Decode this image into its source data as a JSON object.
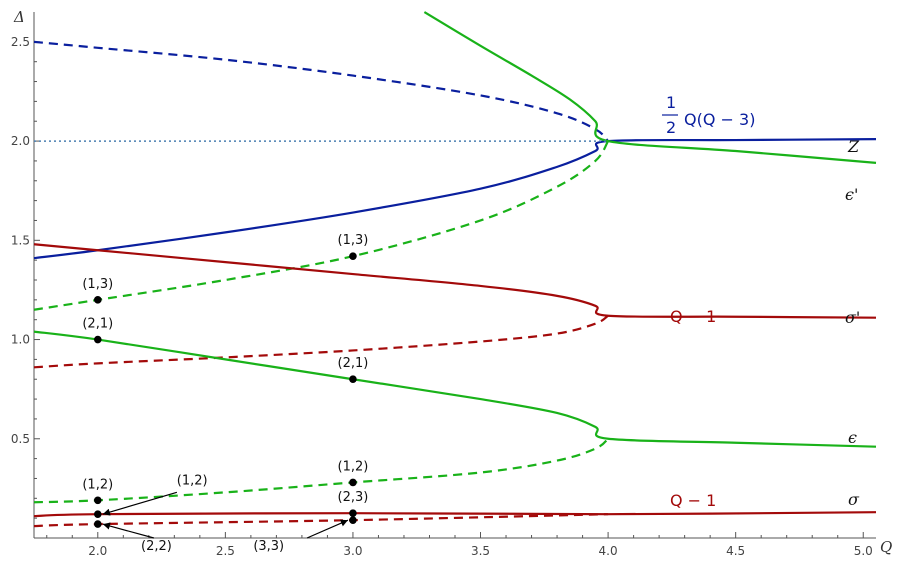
{
  "chart_data": {
    "type": "line",
    "xlabel": "Q",
    "ylabel": "Δ",
    "xlim": [
      1.75,
      5.05
    ],
    "ylim": [
      0.0,
      2.6
    ],
    "grid": false,
    "x_ticks": [
      "2.0",
      "2.5",
      "3.0",
      "3.5",
      "4.0",
      "4.5",
      "5.0"
    ],
    "y_ticks": [
      "0.5",
      "1.0",
      "1.5",
      "2.0",
      "2.5"
    ],
    "colors": {
      "blue": "#0a1f9e",
      "green": "#19b219",
      "red": "#a30a0a",
      "dotted": "#4a7fb0"
    },
    "series": [
      {
        "name": "Z",
        "color": "blue",
        "style": "solid",
        "x": [
          1.75,
          2.0,
          2.5,
          3.0,
          3.5,
          3.8,
          3.95,
          4.0,
          4.5,
          5.05
        ],
        "y": [
          1.41,
          1.45,
          1.54,
          1.64,
          1.76,
          1.87,
          1.95,
          2.0,
          2.005,
          2.01
        ]
      },
      {
        "name": "",
        "color": "blue",
        "style": "dashed",
        "x": [
          1.75,
          2.0,
          2.5,
          3.0,
          3.5,
          3.8,
          3.95,
          4.0
        ],
        "y": [
          2.5,
          2.47,
          2.41,
          2.33,
          2.23,
          2.14,
          2.06,
          2.0
        ]
      },
      {
        "name": "ε'",
        "color": "green",
        "style": "solid",
        "x": [
          3.28,
          3.5,
          3.7,
          3.85,
          3.95,
          4.0,
          4.5,
          5.05
        ],
        "y": [
          2.65,
          2.48,
          2.33,
          2.21,
          2.1,
          2.0,
          1.95,
          1.89
        ]
      },
      {
        "name": "",
        "color": "green",
        "style": "dashed",
        "x": [
          1.75,
          2.0,
          2.5,
          3.0,
          3.5,
          3.8,
          3.95,
          4.0
        ],
        "y": [
          1.15,
          1.2,
          1.3,
          1.42,
          1.6,
          1.77,
          1.9,
          2.0
        ]
      },
      {
        "name": "σ'",
        "color": "red",
        "style": "solid",
        "x": [
          1.75,
          2.0,
          2.5,
          3.0,
          3.5,
          3.8,
          3.95,
          4.0,
          4.5,
          5.05
        ],
        "y": [
          1.48,
          1.45,
          1.39,
          1.33,
          1.27,
          1.22,
          1.17,
          1.12,
          1.115,
          1.11
        ]
      },
      {
        "name": "",
        "color": "red",
        "style": "dashed",
        "x": [
          1.75,
          2.0,
          2.5,
          3.0,
          3.5,
          3.8,
          3.95,
          4.0
        ],
        "y": [
          0.86,
          0.88,
          0.91,
          0.945,
          0.99,
          1.03,
          1.08,
          1.12
        ]
      },
      {
        "name": "ε",
        "color": "green",
        "style": "solid",
        "x": [
          1.75,
          2.0,
          2.5,
          3.0,
          3.5,
          3.8,
          3.95,
          4.0,
          4.5,
          5.05
        ],
        "y": [
          1.04,
          1.0,
          0.9,
          0.8,
          0.7,
          0.63,
          0.56,
          0.5,
          0.48,
          0.46
        ]
      },
      {
        "name": "",
        "color": "green",
        "style": "dashed",
        "x": [
          1.75,
          2.0,
          2.5,
          3.0,
          3.5,
          3.8,
          3.95,
          4.0
        ],
        "y": [
          0.18,
          0.19,
          0.23,
          0.28,
          0.33,
          0.39,
          0.45,
          0.5
        ]
      },
      {
        "name": "σ",
        "color": "red",
        "style": "solid",
        "x": [
          1.75,
          2.0,
          3.0,
          4.0,
          5.05
        ],
        "y": [
          0.11,
          0.12,
          0.125,
          0.12,
          0.13
        ]
      },
      {
        "name": "",
        "color": "red",
        "style": "dashed",
        "x": [
          1.75,
          2.0,
          3.0,
          4.0
        ],
        "y": [
          0.06,
          0.07,
          0.09,
          0.12
        ]
      },
      {
        "name": "",
        "color": "dotted",
        "style": "dotted",
        "x": [
          1.75,
          4.0
        ],
        "y": [
          2.0,
          2.0
        ]
      }
    ],
    "points": [
      {
        "label": "(1,3)",
        "x": 2.0,
        "y": 1.2
      },
      {
        "label": "(1,3)",
        "x": 3.0,
        "y": 1.42
      },
      {
        "label": "(2,1)",
        "x": 2.0,
        "y": 1.0
      },
      {
        "label": "(2,1)",
        "x": 3.0,
        "y": 0.8
      },
      {
        "label": "(1,2)",
        "x": 2.0,
        "y": 0.19
      },
      {
        "label": "(1,2)",
        "x": 3.0,
        "y": 0.28
      },
      {
        "label": "(2,3)",
        "x": 3.0,
        "y": 0.125
      },
      {
        "label": "(1,2)",
        "x": 2.0,
        "y": 0.12
      },
      {
        "label": "(2,2)",
        "x": 2.0,
        "y": 0.07
      },
      {
        "label": "(3,3)",
        "x": 3.0,
        "y": 0.09
      }
    ],
    "annotations": {
      "blue_formula_frac_num": "1",
      "blue_formula_frac_den": "2",
      "blue_formula_text": "Q(Q − 3)",
      "q_minus_1_upper": "Q − 1",
      "q_minus_1_lower": "Q − 1",
      "label_Z": "Z",
      "label_eps_prime": "ϵ'",
      "label_sigma_prime": "σ'",
      "label_eps": "ϵ",
      "label_sigma": "σ"
    }
  }
}
